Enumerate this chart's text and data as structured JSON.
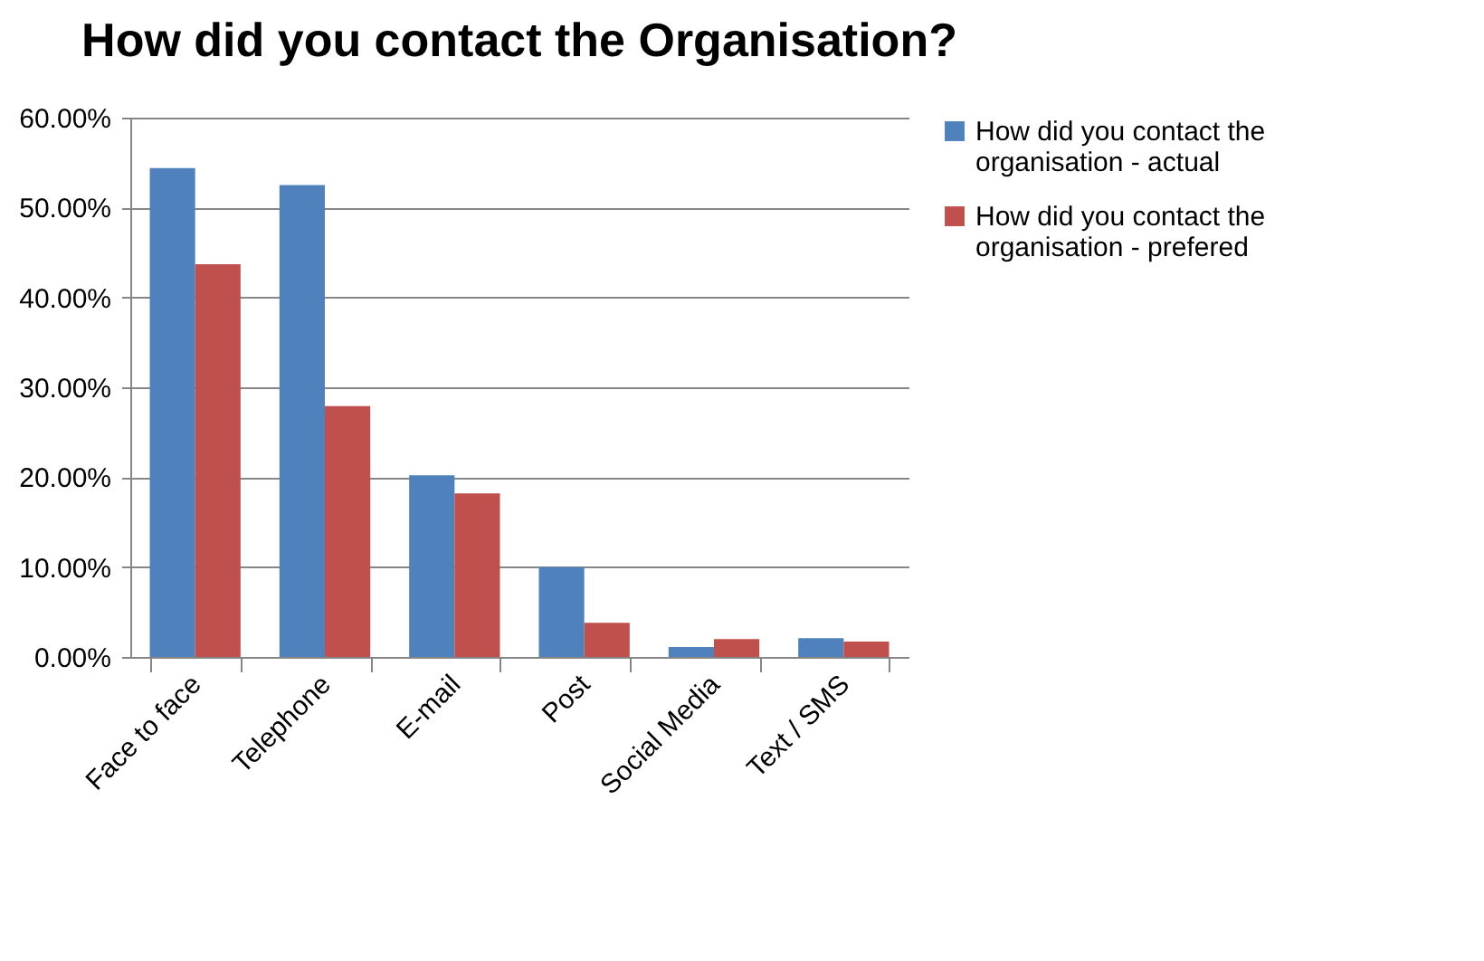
{
  "chart_data": {
    "type": "bar",
    "title": "How did you contact the Organisation?",
    "categories": [
      "Face to face",
      "Telephone",
      "E-mail",
      "Post",
      "Social Media",
      "Text / SMS"
    ],
    "series": [
      {
        "name": "How did you contact the organisation - actual",
        "color": "#4f81bd",
        "values": [
          54.4,
          52.5,
          20.2,
          10.0,
          1.1,
          2.1
        ]
      },
      {
        "name": "How did you contact the organisation - prefered",
        "color": "#c0504d",
        "values": [
          43.7,
          27.9,
          18.2,
          3.8,
          2.0,
          1.7
        ]
      }
    ],
    "ylim": [
      0,
      60
    ],
    "yticks": [
      {
        "value": 0,
        "label": "0.00%"
      },
      {
        "value": 10,
        "label": "10.00%"
      },
      {
        "value": 20,
        "label": "20.00%"
      },
      {
        "value": 30,
        "label": "30.00%"
      },
      {
        "value": 40,
        "label": "40.00%"
      },
      {
        "value": 50,
        "label": "50.00%"
      },
      {
        "value": 60,
        "label": "60.00%"
      }
    ],
    "grid": "y",
    "legend": "right"
  }
}
